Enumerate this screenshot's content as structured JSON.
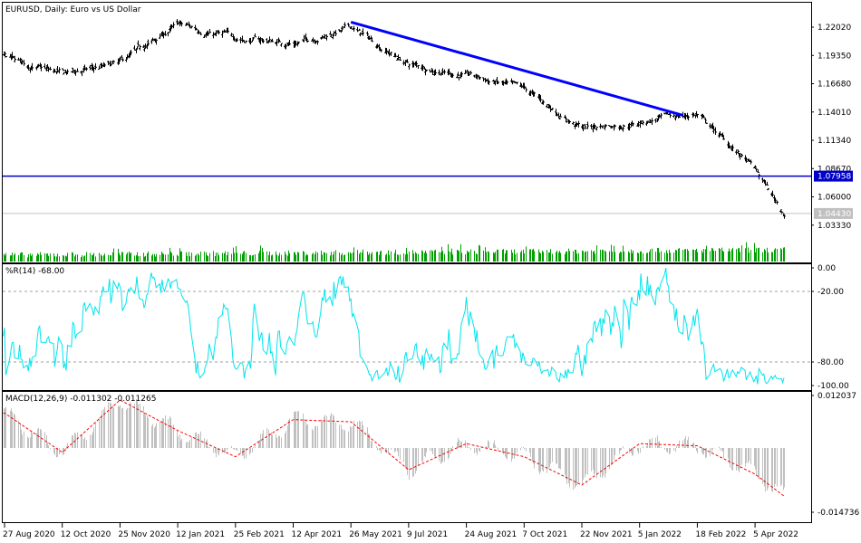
{
  "chart_data": {
    "type": "line",
    "symbol": "EURUSD",
    "timeframe": "Daily",
    "title": "EURUSD, Daily:  Euro vs US Dollar",
    "x_ticks": [
      "27 Aug 2020",
      "12 Oct 2020",
      "25 Nov 2020",
      "12 Jan 2021",
      "25 Feb 2021",
      "12 Apr 2021",
      "26 May 2021",
      "9 Jul 2021",
      "24 Aug 2021",
      "7 Oct 2021",
      "22 Nov 2021",
      "5 Jan 2022",
      "18 Feb 2022",
      "5 Apr 2022"
    ],
    "price_panel": {
      "ylim": [
        1.022,
        1.239
      ],
      "y_ticks": [
        "1.22020",
        "1.19350",
        "1.16680",
        "1.14010",
        "1.11340",
        "1.08670",
        "1.06000",
        "1.03330"
      ],
      "series": {
        "type": "bar",
        "anchors_x": [
          "27 Aug 2020",
          "12 Oct 2020",
          "25 Nov 2020",
          "12 Jan 2021",
          "25 Feb 2021",
          "12 Apr 2021",
          "26 May 2021",
          "9 Jul 2021",
          "24 Aug 2021",
          "7 Oct 2021",
          "22 Nov 2021",
          "5 Jan 2022",
          "18 Feb 2022",
          "5 Apr 2022",
          "28 Apr 2022"
        ],
        "anchors_close": [
          1.19,
          1.175,
          1.185,
          1.222,
          1.21,
          1.205,
          1.22,
          1.185,
          1.175,
          1.16,
          1.125,
          1.131,
          1.138,
          1.085,
          1.0443
        ]
      },
      "trendline": {
        "from": [
          "26 May 2021",
          1.225
        ],
        "to": [
          "7 Feb 2022",
          1.137
        ],
        "color": "#0000ff"
      },
      "horizontal_line": {
        "value": 1.07958,
        "label": "1.07958",
        "color": "#0000c8"
      },
      "current_price": {
        "value": 1.0443,
        "label": "1.04430",
        "color": "#c0c0c0"
      },
      "volume_color": "#00a000"
    },
    "wpr_panel": {
      "label": "%R(14) -68.00",
      "ylim": [
        -100,
        0
      ],
      "y_ticks": [
        "0.00",
        "-20.00",
        "-80.00",
        "-100.00"
      ],
      "levels": [
        -20,
        -80
      ],
      "color": "#00e5ee"
    },
    "macd_panel": {
      "label": "MACD(12,26,9) -0.011302 -0.011265",
      "ylim": [
        -0.014736,
        0.012037
      ],
      "y_ticks": [
        "0.012037",
        "-0.014736"
      ],
      "histogram_color": "#c0c0c0",
      "signal_color": "#ff0000",
      "signal_anchors_x": [
        "27 Aug 2020",
        "12 Oct 2020",
        "25 Nov 2020",
        "12 Jan 2021",
        "25 Feb 2021",
        "12 Apr 2021",
        "26 May 2021",
        "9 Jul 2021",
        "24 Aug 2021",
        "7 Oct 2021",
        "22 Nov 2021",
        "5 Jan 2022",
        "18 Feb 2022",
        "5 Apr 2022",
        "28 Apr 2022"
      ],
      "signal_anchors_y": [
        0.008,
        -0.001,
        0.011,
        0.004,
        -0.002,
        0.0065,
        0.006,
        -0.005,
        0.001,
        -0.002,
        -0.0085,
        0.001,
        0.0005,
        -0.006,
        -0.011
      ]
    }
  }
}
